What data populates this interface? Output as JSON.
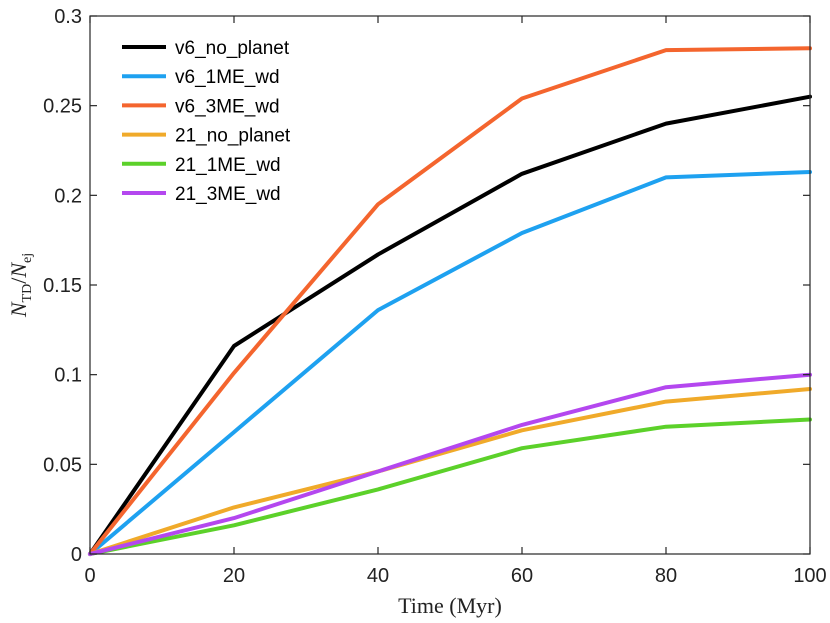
{
  "chart_data": {
    "type": "line",
    "title": "",
    "xlabel": "Time (Myr)",
    "ylabel_main": "N",
    "ylabel_num_sub": "TD",
    "ylabel_den_sub": "ej",
    "xlim": [
      0,
      100
    ],
    "ylim": [
      0,
      0.3
    ],
    "x_ticks": [
      0,
      20,
      40,
      60,
      80,
      100
    ],
    "y_ticks": [
      0,
      0.05,
      0.1,
      0.15,
      0.2,
      0.25,
      0.3
    ],
    "x_tick_labels": [
      "0",
      "20",
      "40",
      "60",
      "80",
      "100"
    ],
    "y_tick_labels": [
      "0",
      "0.05",
      "0.1",
      "0.15",
      "0.2",
      "0.25",
      "0.3"
    ],
    "x": [
      0,
      20,
      40,
      60,
      80,
      100
    ],
    "legend_position": "top-left",
    "grid": false,
    "series": [
      {
        "name": "v6_no_planet",
        "color": "#000000",
        "values": [
          0,
          0.116,
          0.167,
          0.212,
          0.24,
          0.255
        ]
      },
      {
        "name": "v6_1ME_wd",
        "color": "#1ea1f0",
        "values": [
          0,
          0.068,
          0.136,
          0.179,
          0.21,
          0.213
        ]
      },
      {
        "name": "v6_3ME_wd",
        "color": "#f4652e",
        "values": [
          0,
          0.101,
          0.195,
          0.254,
          0.281,
          0.282
        ]
      },
      {
        "name": "21_no_planet",
        "color": "#f0aa2a",
        "values": [
          0,
          0.026,
          0.046,
          0.069,
          0.085,
          0.092
        ]
      },
      {
        "name": "21_1ME_wd",
        "color": "#5cd12a",
        "values": [
          0,
          0.016,
          0.036,
          0.059,
          0.071,
          0.075
        ]
      },
      {
        "name": "21_3ME_wd",
        "color": "#b447ef",
        "values": [
          0,
          0.02,
          0.046,
          0.072,
          0.093,
          0.1
        ]
      }
    ]
  }
}
